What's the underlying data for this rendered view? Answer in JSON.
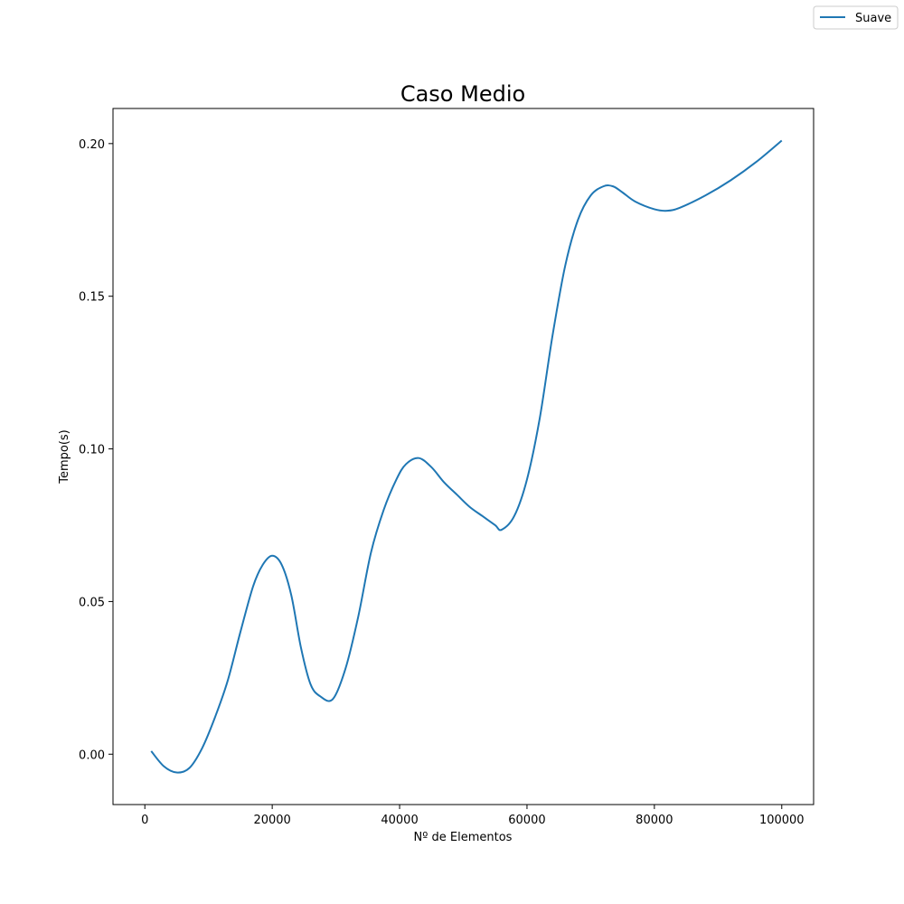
{
  "chart_data": {
    "type": "line",
    "title": "Caso Medio",
    "xlabel": "Nº de Elementos",
    "ylabel": "Tempo(s)",
    "xlim": [
      -5000,
      105000
    ],
    "ylim": [
      -0.0165,
      0.2115
    ],
    "xticks": [
      0,
      20000,
      40000,
      60000,
      80000,
      100000
    ],
    "xtick_labels": [
      "0",
      "20000",
      "40000",
      "60000",
      "80000",
      "100000"
    ],
    "yticks": [
      0.0,
      0.05,
      0.1,
      0.15,
      0.2
    ],
    "ytick_labels": [
      "0.00",
      "0.05",
      "0.10",
      "0.15",
      "0.20"
    ],
    "grid": false,
    "legend_position": "top-right (figure)",
    "series": [
      {
        "name": "Suave",
        "color": "#1f77b4",
        "x": [
          1000,
          3000,
          5000,
          7000,
          9000,
          11000,
          13000,
          15000,
          17000,
          18500,
          20000,
          21500,
          23000,
          24500,
          26000,
          27500,
          29500,
          31500,
          33500,
          35500,
          37500,
          39500,
          41000,
          43000,
          45000,
          47000,
          49000,
          51000,
          53000,
          55000,
          56000,
          58000,
          60000,
          62000,
          64000,
          66000,
          68000,
          70000,
          72000,
          73500,
          75000,
          77000,
          80000,
          82000,
          84000,
          88000,
          92000,
          96000,
          100000
        ],
        "y": [
          0.001,
          -0.004,
          -0.006,
          -0.0045,
          0.002,
          0.012,
          0.024,
          0.04,
          0.055,
          0.062,
          0.065,
          0.062,
          0.052,
          0.035,
          0.023,
          0.019,
          0.018,
          0.028,
          0.045,
          0.066,
          0.08,
          0.09,
          0.095,
          0.097,
          0.094,
          0.089,
          0.085,
          0.081,
          0.078,
          0.075,
          0.0735,
          0.078,
          0.09,
          0.11,
          0.137,
          0.16,
          0.175,
          0.183,
          0.186,
          0.186,
          0.184,
          0.181,
          0.1785,
          0.178,
          0.179,
          0.183,
          0.188,
          0.194,
          0.201
        ]
      }
    ]
  }
}
